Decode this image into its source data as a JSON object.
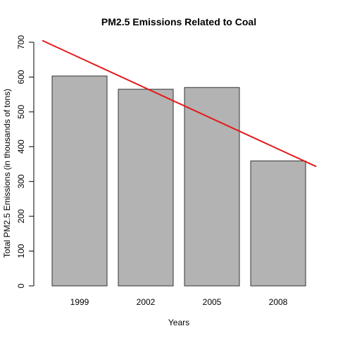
{
  "chart_data": {
    "type": "bar",
    "title": "PM2.5 Emissions Related to Coal",
    "xlabel": "Years",
    "ylabel": "Total PM2.5 Emissions (in thousands of tons)",
    "categories": [
      "1999",
      "2002",
      "2005",
      "2008"
    ],
    "values": [
      603,
      565,
      570,
      359
    ],
    "ylim": [
      0,
      700
    ],
    "yticks": [
      0,
      100,
      200,
      300,
      400,
      500,
      600,
      700
    ],
    "trendline": {
      "color": "#e41a1c",
      "start_value": 705,
      "end_value": 343
    },
    "bar_fill": "#b3b3b3",
    "bar_stroke": "#333333",
    "grid": false,
    "legend": "none"
  }
}
